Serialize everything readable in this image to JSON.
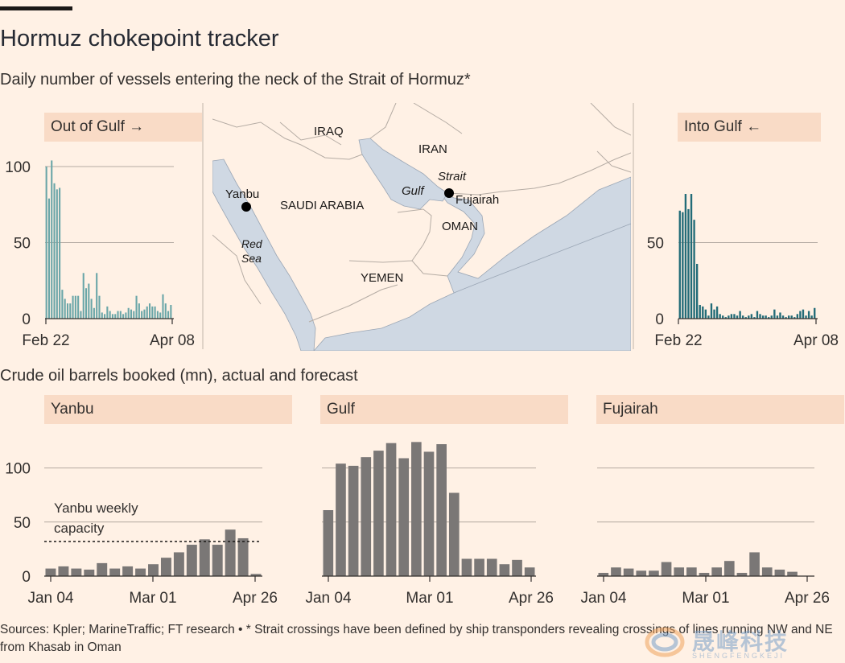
{
  "header": {
    "title": "Hormuz chokepoint tracker",
    "subtitle": "Daily number of vessels entering the neck of the Strait of Hormuz*"
  },
  "section2_label": "Crude oil barrels booked (mn), actual and forecast",
  "source": "Sources: Kpler; MarineTraffic; FT research • * Strait crossings have been defined by ship transponders revealing crossings of lines running NW and NE from Khasab in Oman",
  "watermark": {
    "text": "晟峰科技",
    "sub": "SHENGFENGKEJI"
  },
  "map": {
    "labels": {
      "iraq": "IRAQ",
      "iran": "IRAN",
      "saudi": "SAUDI ARABIA",
      "oman": "OMAN",
      "yemen": "YEMEN",
      "yanbu": "Yanbu",
      "fujairah": "Fujairah",
      "gulf": "Gulf",
      "strait": "Strait",
      "red": "Red",
      "sea": "Sea"
    }
  },
  "colors": {
    "accent_bar": "#1a1817",
    "out_bars": "#6aa6a8",
    "in_bars": "#226c78",
    "crude_bars": "#7a7776",
    "grid": "#b4aaa2"
  },
  "chart_data": [
    {
      "id": "out",
      "type": "bar",
      "title": "Out of Gulf →",
      "xlabel_start": "Feb 22",
      "xlabel_end": "Apr 08",
      "ylim": [
        0,
        100
      ],
      "yticks": [
        0,
        50,
        100
      ],
      "values": [
        100,
        79,
        104,
        89,
        85,
        86,
        19,
        13,
        10,
        10,
        15,
        15,
        15,
        5,
        30,
        20,
        23,
        13,
        7,
        30,
        15,
        4,
        3,
        8,
        5,
        3,
        3,
        5,
        5,
        3,
        4,
        7,
        6,
        5,
        15,
        10,
        5,
        6,
        8,
        10,
        8,
        8,
        5,
        4,
        16,
        10,
        5,
        9
      ]
    },
    {
      "id": "in",
      "type": "bar",
      "title": "Into Gulf ←",
      "xlabel_start": "Feb 22",
      "xlabel_end": "Apr 08",
      "ylim": [
        0,
        100
      ],
      "yticks": [
        0,
        50
      ],
      "values": [
        71,
        70,
        82,
        72,
        82,
        65,
        36,
        9,
        8,
        6,
        2,
        10,
        6,
        8,
        3,
        2,
        1,
        2,
        3,
        3,
        2,
        5,
        2,
        1,
        2,
        3,
        1,
        5,
        3,
        2,
        2,
        1,
        2,
        6,
        2,
        4,
        2,
        1,
        2,
        2,
        1,
        3,
        5,
        6,
        2,
        5,
        2,
        7
      ]
    },
    {
      "id": "yanbu",
      "type": "bar",
      "title": "Yanbu",
      "xlabel_start": "Jan 04",
      "xlabel_mid": "Mar 01",
      "xlabel_end": "Apr 26",
      "ylim": [
        0,
        125
      ],
      "yticks": [
        0,
        50,
        100
      ],
      "values": [
        7,
        9,
        7,
        6,
        12,
        7,
        9,
        7,
        11,
        17,
        22,
        29,
        34,
        29,
        43,
        35,
        2
      ],
      "capacity": 32,
      "annotation": [
        "Yanbu weekly",
        "capacity"
      ]
    },
    {
      "id": "gulf",
      "type": "bar",
      "title": "Gulf",
      "xlabel_start": "Jan 04",
      "xlabel_mid": "Mar 01",
      "xlabel_end": "Apr 26",
      "ylim": [
        0,
        125
      ],
      "values": [
        61,
        104,
        102,
        110,
        116,
        123,
        109,
        124,
        115,
        122,
        77,
        16,
        16,
        16,
        11,
        15,
        8
      ]
    },
    {
      "id": "fujairah",
      "type": "bar",
      "title": "Fujairah",
      "xlabel_start": "Jan 04",
      "xlabel_mid": "Mar 01",
      "xlabel_end": "Apr 26",
      "ylim": [
        0,
        125
      ],
      "values": [
        3,
        8,
        7,
        5,
        5,
        13,
        8,
        8,
        3,
        8,
        14,
        3,
        22,
        8,
        6,
        4,
        0
      ]
    }
  ]
}
